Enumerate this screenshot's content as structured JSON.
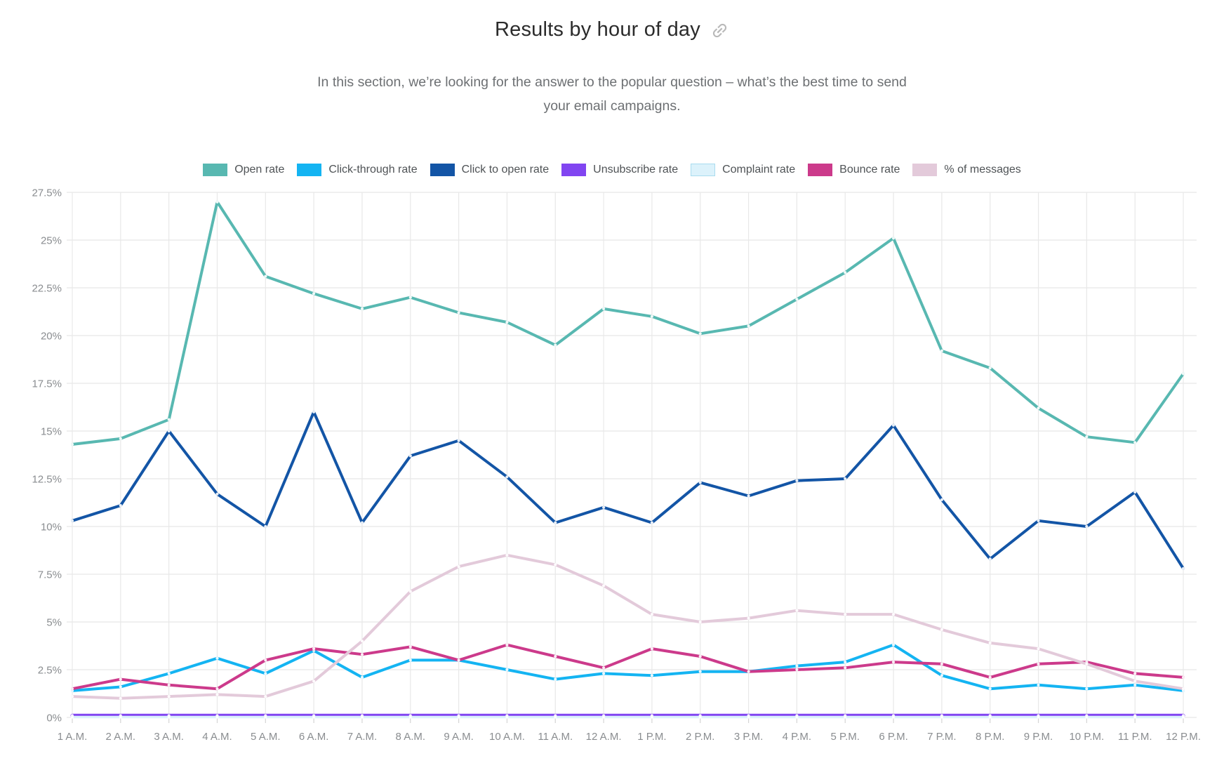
{
  "page": {
    "title": "Results by hour of day",
    "subtitle": "In this section, we’re looking for the answer to the popular question – what’s the best time to send your email campaigns."
  },
  "icons": {
    "title_link": "link-icon"
  },
  "colors": {
    "grid": "#e8e8e8",
    "tick": "#d5d5d5",
    "axis_label": "#8a8d90",
    "legend_label": "#4f5356",
    "title": "#2b2b2b",
    "subtitle": "#6d7073",
    "link_icon": "#b9b9b9"
  },
  "chart_data": {
    "type": "line",
    "title": "Results by hour of day",
    "xlabel": "",
    "ylabel": "",
    "grid": true,
    "legend_position": "top",
    "ylim": [
      0,
      27.5
    ],
    "y_tick_step": 2.5,
    "y_ticks": [
      "0%",
      "2.5%",
      "5%",
      "7.5%",
      "10%",
      "12.5%",
      "15%",
      "17.5%",
      "20%",
      "22.5%",
      "25%",
      "27.5%"
    ],
    "categories": [
      "1 A.M.",
      "2 A.M.",
      "3 A.M.",
      "4 A.M.",
      "5 A.M.",
      "6 A.M.",
      "7 A.M.",
      "8 A.M.",
      "9 A.M.",
      "10 A.M.",
      "11 A.M.",
      "12 A.M.",
      "1 P.M.",
      "2 P.M.",
      "3 P.M.",
      "4 P.M.",
      "5 P.M.",
      "6 P.M.",
      "7 P.M.",
      "8 P.M.",
      "9 P.M.",
      "10 P.M.",
      "11 P.M.",
      "12 P.M."
    ],
    "series": [
      {
        "name": "Open rate",
        "color": "#58B8B1",
        "values": [
          14.3,
          14.6,
          15.6,
          27.0,
          23.1,
          22.2,
          21.4,
          22.0,
          21.2,
          20.7,
          19.5,
          21.4,
          21.0,
          20.1,
          20.5,
          21.9,
          23.3,
          25.1,
          19.2,
          18.3,
          16.2,
          14.7,
          14.4,
          18.0
        ]
      },
      {
        "name": "Click-through rate",
        "color": "#14B4F2",
        "values": [
          1.4,
          1.6,
          2.3,
          3.1,
          2.3,
          3.5,
          2.1,
          3.0,
          3.0,
          2.5,
          2.0,
          2.3,
          2.2,
          2.4,
          2.4,
          2.7,
          2.9,
          3.8,
          2.2,
          1.5,
          1.7,
          1.5,
          1.7,
          1.4
        ]
      },
      {
        "name": "Click to open rate",
        "color": "#1355A6",
        "values": [
          10.3,
          11.1,
          15.0,
          11.7,
          10.0,
          16.0,
          10.2,
          13.7,
          14.5,
          12.6,
          10.2,
          11.0,
          10.2,
          12.3,
          11.6,
          12.4,
          12.5,
          15.3,
          11.4,
          8.3,
          10.3,
          10.0,
          11.8,
          7.8
        ]
      },
      {
        "name": "Unsubscribe rate",
        "color": "#8145F1",
        "line_width": 5,
        "values": [
          0.1,
          0.1,
          0.1,
          0.1,
          0.1,
          0.1,
          0.1,
          0.1,
          0.1,
          0.1,
          0.1,
          0.1,
          0.1,
          0.1,
          0.1,
          0.1,
          0.1,
          0.1,
          0.1,
          0.1,
          0.1,
          0.1,
          0.1,
          0.1
        ]
      },
      {
        "name": "Complaint rate",
        "color": "#DCF2FB",
        "swatch_border": "#A9DCEF",
        "line_width": 3.5,
        "values": [
          0.02,
          0.02,
          0.02,
          0.02,
          0.02,
          0.02,
          0.02,
          0.02,
          0.02,
          0.02,
          0.02,
          0.02,
          0.02,
          0.02,
          0.02,
          0.02,
          0.02,
          0.02,
          0.02,
          0.02,
          0.02,
          0.02,
          0.02,
          0.02
        ]
      },
      {
        "name": "Bounce rate",
        "color": "#CC3A8B",
        "values": [
          1.5,
          2.0,
          1.7,
          1.5,
          3.0,
          3.6,
          3.3,
          3.7,
          3.0,
          3.8,
          3.2,
          2.6,
          3.6,
          3.2,
          2.4,
          2.5,
          2.6,
          2.9,
          2.8,
          2.1,
          2.8,
          2.9,
          2.3,
          2.1
        ]
      },
      {
        "name": "% of messages",
        "color": "#E3CADA",
        "values": [
          1.1,
          1.0,
          1.1,
          1.2,
          1.1,
          1.9,
          4.0,
          6.6,
          7.9,
          8.5,
          8.0,
          6.9,
          5.4,
          5.0,
          5.2,
          5.6,
          5.4,
          5.4,
          4.6,
          3.9,
          3.6,
          2.8,
          1.9,
          1.5
        ]
      }
    ]
  }
}
